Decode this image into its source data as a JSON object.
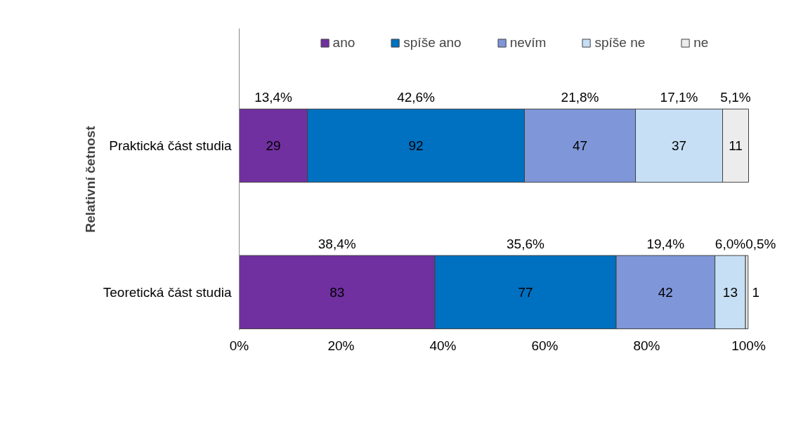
{
  "chart_data": {
    "type": "bar",
    "orientation": "horizontal",
    "stacked": true,
    "ylabel": "Relativní četnost",
    "categories": [
      "Praktická část studia",
      "Teoretická část studia"
    ],
    "series": [
      {
        "name": "ano",
        "color": "#7030a0",
        "values": [
          13.4,
          38.4
        ],
        "value_labels": [
          "13,4%",
          "38,4%"
        ]
      },
      {
        "name": "spíše ano",
        "color": "#0070c0",
        "values": [
          42.6,
          35.6
        ],
        "value_labels": [
          "42,6%",
          "35,6%"
        ]
      },
      {
        "name": "nevím",
        "color": "#7f96d8",
        "values": [
          21.8,
          19.4
        ],
        "value_labels": [
          "21,8%",
          "19,4%"
        ]
      },
      {
        "name": "spíše ne",
        "color": "#c6dff5",
        "values": [
          17.1,
          6.0
        ],
        "value_labels": [
          "17,1%",
          "6,0%"
        ]
      },
      {
        "name": "ne",
        "color": "#ececec",
        "values": [
          5.1,
          0.5
        ],
        "value_labels": [
          "5,1%",
          "0,5%"
        ]
      }
    ],
    "annotations": [
      "29",
      "92",
      "47",
      "37",
      "11",
      "83",
      "77",
      "42",
      "13",
      "1"
    ],
    "xlim": [
      0,
      100
    ],
    "xticks": [
      {
        "value": 0,
        "label": "0%"
      },
      {
        "value": 20,
        "label": "20%"
      },
      {
        "value": 40,
        "label": "40%"
      },
      {
        "value": 60,
        "label": "60%"
      },
      {
        "value": 80,
        "label": "80%"
      },
      {
        "value": 100,
        "label": "100%"
      }
    ],
    "grid": false,
    "legend": "top"
  }
}
